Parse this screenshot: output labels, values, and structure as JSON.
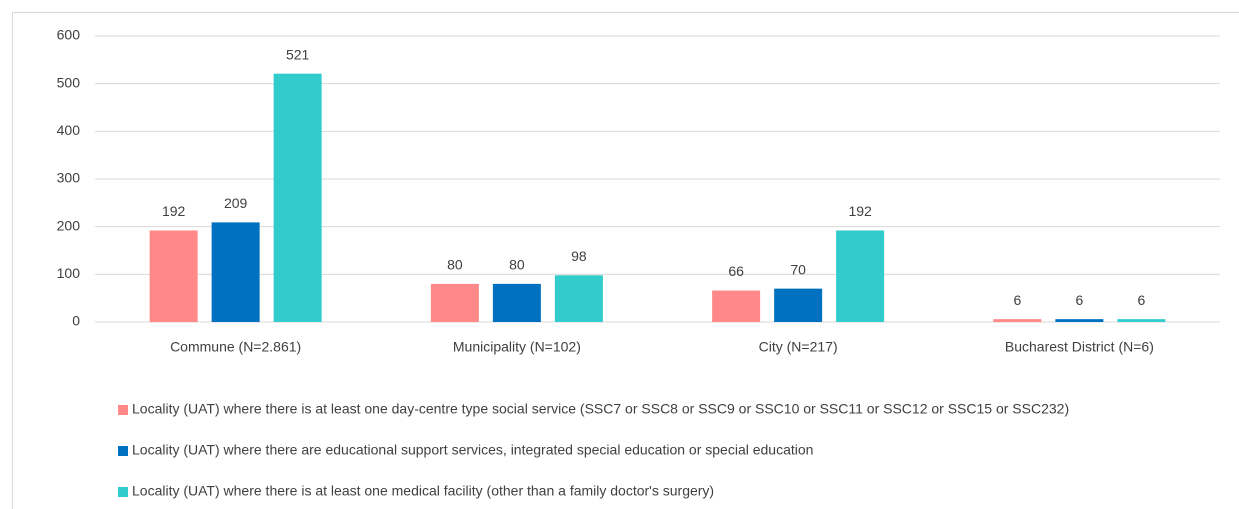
{
  "chart_data": {
    "type": "bar",
    "categories": [
      "Commune (N=2.861)",
      "Municipality (N=102)",
      "City (N=217)",
      "Bucharest District (N=6)"
    ],
    "series": [
      {
        "name": "Locality (UAT) where there is at least one day-centre type social service (SSC7 or SSC8 or SSC9 or SSC10 or SSC11 or SSC12 or SSC15 or SSC232)",
        "color": "#ff8989",
        "values": [
          192,
          80,
          66,
          6
        ]
      },
      {
        "name": "Locality (UAT) where there are educational support services, integrated special education or special education",
        "color": "#0070c0",
        "values": [
          209,
          80,
          70,
          6
        ]
      },
      {
        "name": "Locality (UAT) where there is at least one medical facility (other than a family doctor's surgery)",
        "color": "#33cccc",
        "values": [
          521,
          98,
          192,
          6
        ]
      }
    ],
    "ylim": [
      0,
      600
    ],
    "yticks": [
      0,
      100,
      200,
      300,
      400,
      500,
      600
    ],
    "grid": true,
    "legend": "bottom"
  }
}
